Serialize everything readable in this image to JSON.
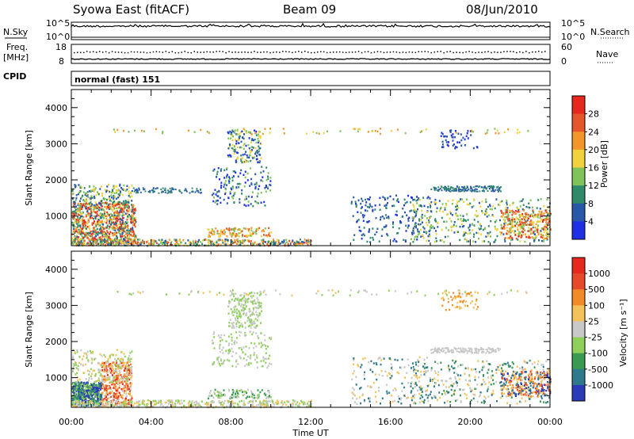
{
  "header": {
    "station": "Syowa East (fitACF)",
    "beam": "Beam 09",
    "date": "08/Jun/2010"
  },
  "side_labels": {
    "nsky": "N.Sky",
    "nsearch": "N.Search",
    "freq_line1": "Freq.",
    "freq_line2": "[MHz]",
    "cpid": "CPID",
    "nave": "Nave",
    "nsky_top": "10^5",
    "nsky_bottom": "10^0",
    "nsearch_top": "10^5",
    "nsearch_bottom": "10^0",
    "freq_top": "18",
    "freq_bottom": "8",
    "nave_top": "60",
    "nave_bottom": "0",
    "cpid_text": "normal (fast) 151"
  },
  "chart_data": [
    {
      "type": "heatmap",
      "ylabel": "Slant Range [km]",
      "ylim": [
        180,
        4500
      ],
      "yticks": [
        "1000",
        "2000",
        "3000",
        "4000"
      ],
      "colorbar_label": "Power [dB]",
      "colorbar_ticks": [
        "4",
        "8",
        "12",
        "16",
        "20",
        "24",
        "28"
      ],
      "colors": [
        "#1f2fe6",
        "#2a58a8",
        "#2f8a6a",
        "#7fc35a",
        "#f2d23c",
        "#f2962c",
        "#e6562b",
        "#e6281e"
      ]
    },
    {
      "type": "heatmap",
      "ylabel": "Slant Range [km]",
      "ylim": [
        180,
        4500
      ],
      "yticks": [
        "1000",
        "2000",
        "3000",
        "4000"
      ],
      "colorbar_label": "Velocity [m s⁻¹]",
      "colorbar_ticks": [
        "1000",
        "500",
        "100",
        "25",
        "-25",
        "-100",
        "-500",
        "-1000"
      ],
      "colors": [
        "#2b3bb8",
        "#2f7a8a",
        "#3a9a52",
        "#8fd05a",
        "#c8c8c8",
        "#f4c25a",
        "#f28a2a",
        "#e64a2a",
        "#e6281e"
      ]
    }
  ],
  "xaxis": {
    "label": "Time UT",
    "ticks": [
      "00:00",
      "04:00",
      "08:00",
      "12:00",
      "16:00",
      "20:00",
      "00:00"
    ]
  }
}
